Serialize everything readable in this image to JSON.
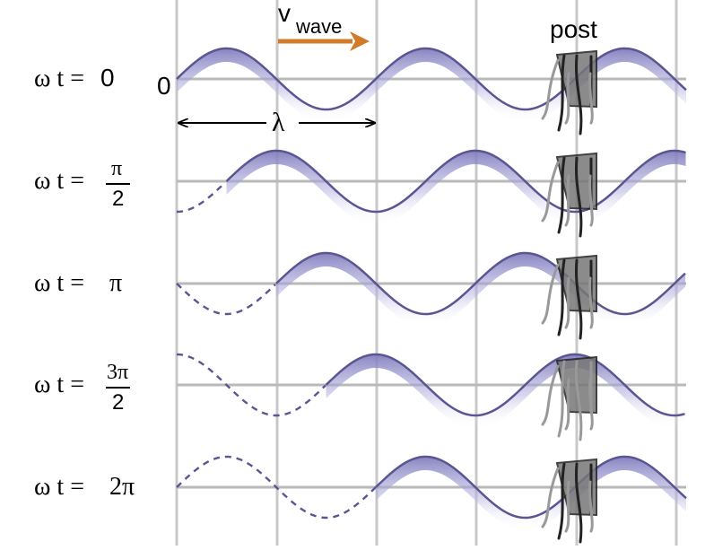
{
  "labels": {
    "origin": "0",
    "vwave_v": "v",
    "vwave_sub": "wave",
    "lambda": "λ",
    "post": "post"
  },
  "rows": [
    {
      "omega_t_prefix": "ω t =",
      "value": "0",
      "value_type": "plain",
      "wave_phase": 0
    },
    {
      "omega_t_prefix": "ω t =",
      "value_numerator": "π",
      "value_denominator": "2",
      "value_type": "fraction",
      "wave_phase": 0.25
    },
    {
      "omega_t_prefix": "ω t =",
      "value": "π",
      "value_type": "plain",
      "wave_phase": 0.5
    },
    {
      "omega_t_prefix": "ω t =",
      "value_numerator": "3π",
      "value_denominator": "2",
      "value_type": "fraction",
      "wave_phase": 0.75
    },
    {
      "omega_t_prefix": "ω t =",
      "value": "2π",
      "value_type": "plain",
      "wave_phase": 1.0
    }
  ],
  "colors": {
    "wave_line": "#5b5592",
    "wave_fill": "#8f8bc8",
    "arrow_orange": "#d17a2a",
    "grid": "#c8c8c8",
    "baseline": "#b9b9b9",
    "post_dark": "#5b5b5b",
    "post_light": "#999999",
    "black": "#000000"
  }
}
